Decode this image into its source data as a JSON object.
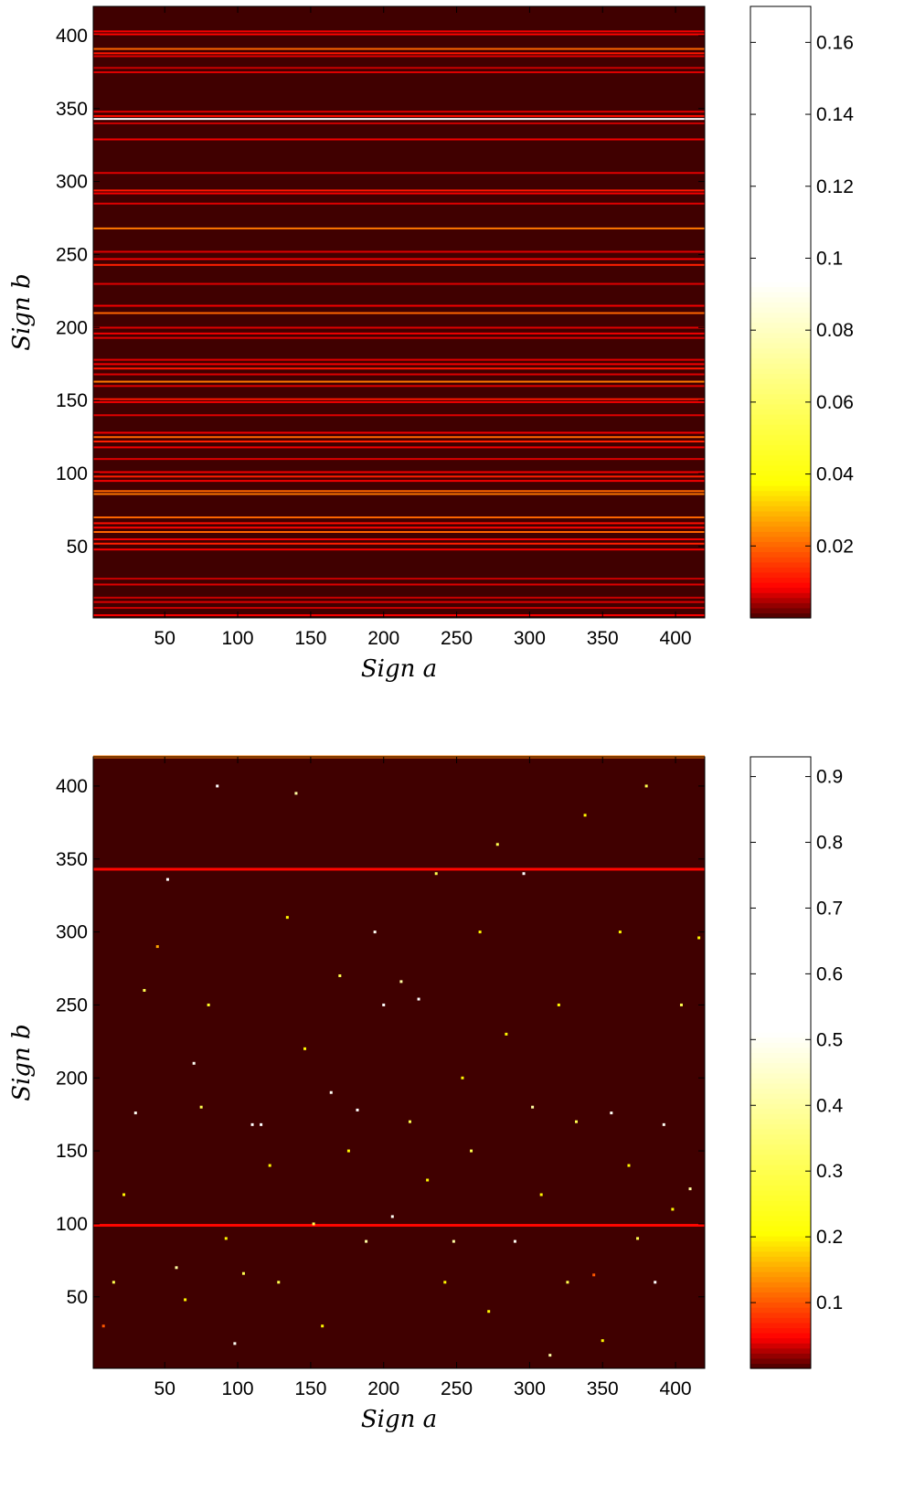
{
  "chart_data": [
    {
      "type": "heatmap",
      "title": "",
      "xlabel": "Sign a",
      "ylabel": "Sign b",
      "xlim": [
        1,
        420
      ],
      "ylim": [
        1,
        420
      ],
      "x_ticks": [
        50,
        100,
        150,
        200,
        250,
        300,
        350,
        400
      ],
      "y_ticks": [
        50,
        100,
        150,
        200,
        250,
        300,
        350,
        400
      ],
      "colorbar": {
        "range": [
          0,
          0.17
        ],
        "ticks": [
          0.02,
          0.04,
          0.06,
          0.08,
          0.1,
          0.12,
          0.14,
          0.16
        ],
        "tick_labels": [
          "0.02",
          "0.04",
          "0.06",
          "0.08",
          "0.1",
          "0.12",
          "0.14",
          "0.16"
        ]
      },
      "pattern": "horizontal rows: value depends on Sign b only",
      "rows": [
        {
          "b": 3,
          "value": 0.008
        },
        {
          "b": 8,
          "value": 0.006
        },
        {
          "b": 12,
          "value": 0.007
        },
        {
          "b": 15,
          "value": 0.006
        },
        {
          "b": 24,
          "value": 0.007
        },
        {
          "b": 28,
          "value": 0.006
        },
        {
          "b": 48,
          "value": 0.008
        },
        {
          "b": 52,
          "value": 0.012
        },
        {
          "b": 55,
          "value": 0.008
        },
        {
          "b": 60,
          "value": 0.02
        },
        {
          "b": 63,
          "value": 0.009
        },
        {
          "b": 66,
          "value": 0.01
        },
        {
          "b": 70,
          "value": 0.02
        },
        {
          "b": 86,
          "value": 0.022
        },
        {
          "b": 88,
          "value": 0.02
        },
        {
          "b": 95,
          "value": 0.008
        },
        {
          "b": 98,
          "value": 0.012
        },
        {
          "b": 101,
          "value": 0.008
        },
        {
          "b": 110,
          "value": 0.007
        },
        {
          "b": 118,
          "value": 0.008
        },
        {
          "b": 122,
          "value": 0.012
        },
        {
          "b": 125,
          "value": 0.02
        },
        {
          "b": 128,
          "value": 0.008
        },
        {
          "b": 140,
          "value": 0.007
        },
        {
          "b": 149,
          "value": 0.008
        },
        {
          "b": 151,
          "value": 0.011
        },
        {
          "b": 160,
          "value": 0.007
        },
        {
          "b": 163,
          "value": 0.022
        },
        {
          "b": 168,
          "value": 0.007
        },
        {
          "b": 172,
          "value": 0.011
        },
        {
          "b": 175,
          "value": 0.008
        },
        {
          "b": 178,
          "value": 0.007
        },
        {
          "b": 193,
          "value": 0.007
        },
        {
          "b": 196,
          "value": 0.008
        },
        {
          "b": 200,
          "value": 0.007
        },
        {
          "b": 210,
          "value": 0.02
        },
        {
          "b": 215,
          "value": 0.008
        },
        {
          "b": 230,
          "value": 0.007
        },
        {
          "b": 243,
          "value": 0.012
        },
        {
          "b": 247,
          "value": 0.008
        },
        {
          "b": 252,
          "value": 0.007
        },
        {
          "b": 268,
          "value": 0.022
        },
        {
          "b": 285,
          "value": 0.007
        },
        {
          "b": 292,
          "value": 0.008
        },
        {
          "b": 294,
          "value": 0.011
        },
        {
          "b": 306,
          "value": 0.007
        },
        {
          "b": 329,
          "value": 0.008
        },
        {
          "b": 340,
          "value": 0.006
        },
        {
          "b": 343,
          "value": 0.16
        },
        {
          "b": 345,
          "value": 0.01
        },
        {
          "b": 348,
          "value": 0.007
        },
        {
          "b": 375,
          "value": 0.007
        },
        {
          "b": 378,
          "value": 0.006
        },
        {
          "b": 386,
          "value": 0.007
        },
        {
          "b": 388,
          "value": 0.011
        },
        {
          "b": 391,
          "value": 0.02
        },
        {
          "b": 401,
          "value": 0.009
        },
        {
          "b": 403,
          "value": 0.008
        }
      ]
    },
    {
      "type": "heatmap",
      "title": "",
      "xlabel": "Sign a",
      "ylabel": "Sign b",
      "xlim": [
        1,
        420
      ],
      "ylim": [
        1,
        420
      ],
      "x_ticks": [
        50,
        100,
        150,
        200,
        250,
        300,
        350,
        400
      ],
      "y_ticks": [
        50,
        100,
        150,
        200,
        250,
        300,
        350,
        400
      ],
      "colorbar": {
        "range": [
          0,
          0.93
        ],
        "ticks": [
          0.1,
          0.2,
          0.3,
          0.4,
          0.5,
          0.6,
          0.7,
          0.8,
          0.9
        ],
        "tick_labels": [
          "0.1",
          "0.2",
          "0.3",
          "0.4",
          "0.5",
          "0.6",
          "0.7",
          "0.8",
          "0.9"
        ]
      },
      "pattern": "sparse scattered points with dense rows near Sign b = 99, 343 and 420",
      "dense_rows": [
        {
          "b": 99,
          "value": 0.05
        },
        {
          "b": 343,
          "value": 0.05
        },
        {
          "b": 420,
          "value": 0.12
        }
      ],
      "points": [
        {
          "a": 8,
          "b": 30,
          "value": 0.1
        },
        {
          "a": 15,
          "b": 60,
          "value": 0.3
        },
        {
          "a": 22,
          "b": 120,
          "value": 0.2
        },
        {
          "a": 30,
          "b": 176,
          "value": 0.5
        },
        {
          "a": 36,
          "b": 260,
          "value": 0.3
        },
        {
          "a": 45,
          "b": 290,
          "value": 0.15
        },
        {
          "a": 52,
          "b": 336,
          "value": 0.6
        },
        {
          "a": 58,
          "b": 70,
          "value": 0.4
        },
        {
          "a": 64,
          "b": 48,
          "value": 0.2
        },
        {
          "a": 70,
          "b": 210,
          "value": 0.5
        },
        {
          "a": 75,
          "b": 180,
          "value": 0.3
        },
        {
          "a": 80,
          "b": 250,
          "value": 0.25
        },
        {
          "a": 86,
          "b": 400,
          "value": 0.7
        },
        {
          "a": 92,
          "b": 90,
          "value": 0.2
        },
        {
          "a": 98,
          "b": 18,
          "value": 0.5
        },
        {
          "a": 104,
          "b": 66,
          "value": 0.3
        },
        {
          "a": 110,
          "b": 168,
          "value": 0.6
        },
        {
          "a": 116,
          "b": 168,
          "value": 0.6
        },
        {
          "a": 122,
          "b": 140,
          "value": 0.2
        },
        {
          "a": 128,
          "b": 60,
          "value": 0.3
        },
        {
          "a": 134,
          "b": 310,
          "value": 0.2
        },
        {
          "a": 140,
          "b": 395,
          "value": 0.4
        },
        {
          "a": 146,
          "b": 220,
          "value": 0.2
        },
        {
          "a": 152,
          "b": 100,
          "value": 0.3
        },
        {
          "a": 158,
          "b": 30,
          "value": 0.2
        },
        {
          "a": 164,
          "b": 190,
          "value": 0.5
        },
        {
          "a": 170,
          "b": 270,
          "value": 0.3
        },
        {
          "a": 176,
          "b": 150,
          "value": 0.2
        },
        {
          "a": 182,
          "b": 178,
          "value": 0.7
        },
        {
          "a": 188,
          "b": 88,
          "value": 0.4
        },
        {
          "a": 194,
          "b": 300,
          "value": 0.5
        },
        {
          "a": 200,
          "b": 250,
          "value": 0.6
        },
        {
          "a": 206,
          "b": 105,
          "value": 0.5
        },
        {
          "a": 212,
          "b": 266,
          "value": 0.4
        },
        {
          "a": 218,
          "b": 170,
          "value": 0.3
        },
        {
          "a": 224,
          "b": 254,
          "value": 0.6
        },
        {
          "a": 230,
          "b": 130,
          "value": 0.2
        },
        {
          "a": 236,
          "b": 340,
          "value": 0.3
        },
        {
          "a": 242,
          "b": 60,
          "value": 0.2
        },
        {
          "a": 248,
          "b": 88,
          "value": 0.4
        },
        {
          "a": 254,
          "b": 200,
          "value": 0.2
        },
        {
          "a": 260,
          "b": 150,
          "value": 0.3
        },
        {
          "a": 266,
          "b": 300,
          "value": 0.2
        },
        {
          "a": 272,
          "b": 40,
          "value": 0.2
        },
        {
          "a": 278,
          "b": 360,
          "value": 0.3
        },
        {
          "a": 284,
          "b": 230,
          "value": 0.2
        },
        {
          "a": 290,
          "b": 88,
          "value": 0.5
        },
        {
          "a": 296,
          "b": 340,
          "value": 0.6
        },
        {
          "a": 302,
          "b": 180,
          "value": 0.4
        },
        {
          "a": 308,
          "b": 120,
          "value": 0.2
        },
        {
          "a": 314,
          "b": 10,
          "value": 0.4
        },
        {
          "a": 320,
          "b": 250,
          "value": 0.2
        },
        {
          "a": 326,
          "b": 60,
          "value": 0.3
        },
        {
          "a": 332,
          "b": 170,
          "value": 0.3
        },
        {
          "a": 338,
          "b": 380,
          "value": 0.2
        },
        {
          "a": 344,
          "b": 65,
          "value": 0.1
        },
        {
          "a": 350,
          "b": 20,
          "value": 0.2
        },
        {
          "a": 356,
          "b": 176,
          "value": 0.5
        },
        {
          "a": 362,
          "b": 300,
          "value": 0.2
        },
        {
          "a": 368,
          "b": 140,
          "value": 0.2
        },
        {
          "a": 374,
          "b": 90,
          "value": 0.3
        },
        {
          "a": 380,
          "b": 400,
          "value": 0.3
        },
        {
          "a": 386,
          "b": 60,
          "value": 0.6
        },
        {
          "a": 392,
          "b": 168,
          "value": 0.5
        },
        {
          "a": 398,
          "b": 110,
          "value": 0.2
        },
        {
          "a": 404,
          "b": 250,
          "value": 0.3
        },
        {
          "a": 410,
          "b": 124,
          "value": 0.4
        },
        {
          "a": 416,
          "b": 296,
          "value": 0.2
        }
      ]
    }
  ]
}
